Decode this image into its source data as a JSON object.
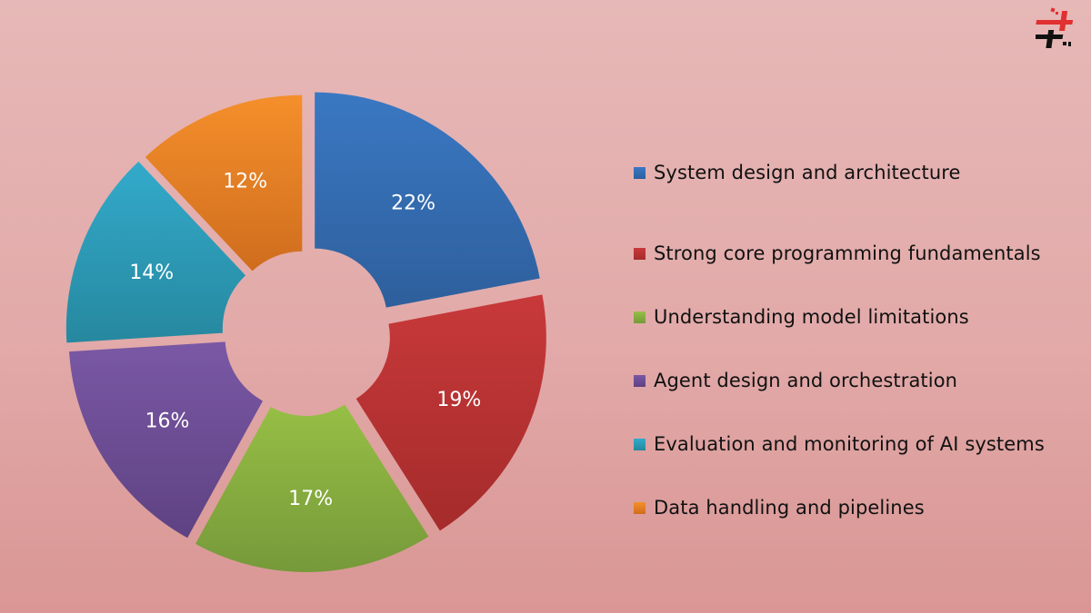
{
  "chart_data": {
    "type": "pie",
    "subtype": "exploded-donut",
    "title": "",
    "categories": [
      "System design and architecture",
      "Strong core programming fundamentals",
      "Understanding model limitations",
      "Agent design and orchestration",
      "Evaluation and monitoring of AI systems",
      "Data handling and pipelines"
    ],
    "values": [
      22,
      19,
      17,
      16,
      14,
      12
    ],
    "labels": [
      "22%",
      "19%",
      "17%",
      "16%",
      "14%",
      "12%"
    ],
    "colors": [
      "#3a78c3",
      "#c8393a",
      "#96bf45",
      "#7a58a5",
      "#33aacb",
      "#f58f2b"
    ],
    "colors_dark": [
      "#2e5f9c",
      "#a52b2b",
      "#76993a",
      "#5e4282",
      "#26889f",
      "#cf6d1e"
    ],
    "legend_position": "right",
    "start_angle_deg": 0,
    "direction": "clockwise"
  },
  "legend": {
    "items": [
      {
        "label": "System design and architecture",
        "color": "#3a78c3"
      },
      {
        "label": "Strong core programming fundamentals",
        "color": "#c8393a"
      },
      {
        "label": "Understanding model limitations",
        "color": "#96bf45"
      },
      {
        "label": "Agent design and orchestration",
        "color": "#7a58a5"
      },
      {
        "label": "Evaluation and monitoring of AI systems",
        "color": "#33aacb"
      },
      {
        "label": "Data handling and pipelines",
        "color": "#f58f2b"
      }
    ]
  },
  "logo": {
    "icon": "brand-logo-icon"
  }
}
